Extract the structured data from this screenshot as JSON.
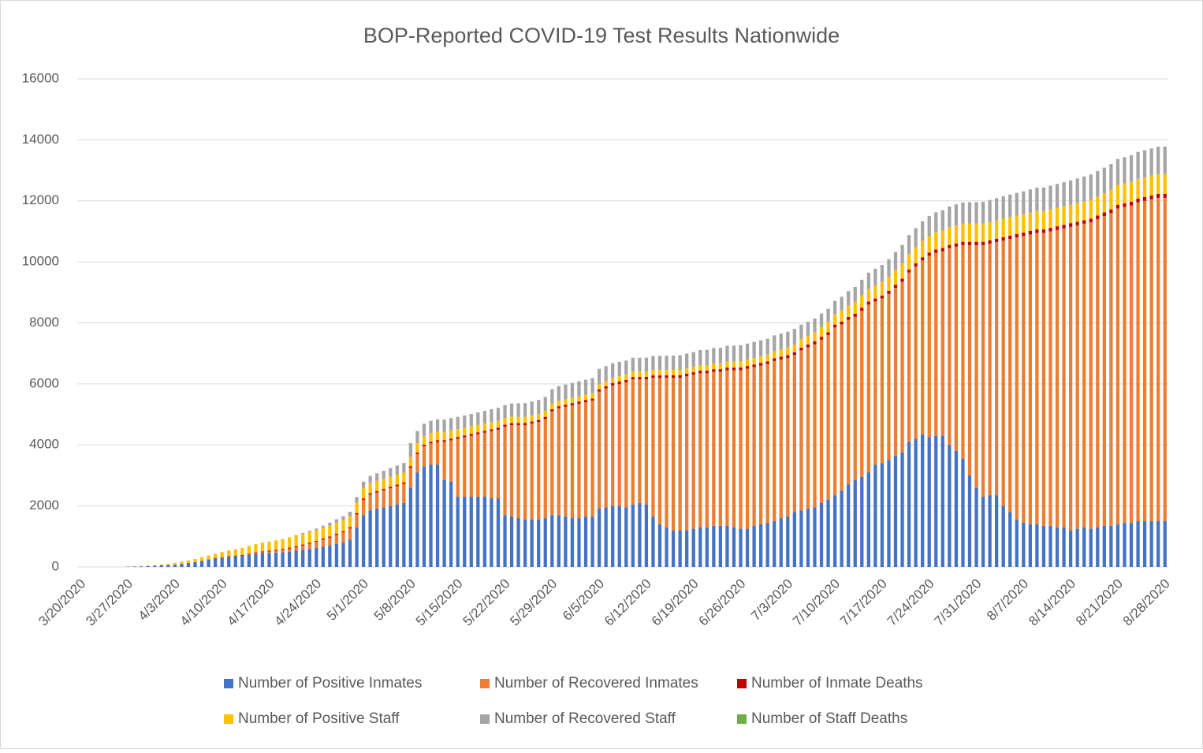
{
  "chart_data": {
    "type": "stacked-bar",
    "title": "BOP-Reported COVID-19 Test Results Nationwide",
    "categories": [
      "3/20/2020",
      null,
      null,
      null,
      null,
      null,
      null,
      "3/27/2020",
      null,
      null,
      null,
      null,
      null,
      null,
      "4/3/2020",
      null,
      null,
      null,
      null,
      null,
      null,
      "4/10/2020",
      null,
      null,
      null,
      null,
      null,
      null,
      "4/17/2020",
      null,
      null,
      null,
      null,
      null,
      null,
      "4/24/2020",
      null,
      null,
      null,
      null,
      null,
      null,
      "5/1/2020",
      null,
      null,
      null,
      null,
      null,
      null,
      "5/8/2020",
      null,
      null,
      null,
      null,
      null,
      null,
      "5/15/2020",
      null,
      null,
      null,
      null,
      null,
      null,
      "5/22/2020",
      null,
      null,
      null,
      null,
      null,
      null,
      "5/29/2020",
      null,
      null,
      null,
      null,
      null,
      null,
      "6/5/2020",
      null,
      null,
      null,
      null,
      null,
      null,
      "6/12/2020",
      null,
      null,
      null,
      null,
      null,
      null,
      "6/19/2020",
      null,
      null,
      null,
      null,
      null,
      null,
      "6/26/2020",
      null,
      null,
      null,
      null,
      null,
      null,
      "7/3/2020",
      null,
      null,
      null,
      null,
      null,
      null,
      "7/10/2020",
      null,
      null,
      null,
      null,
      null,
      null,
      "7/17/2020",
      null,
      null,
      null,
      null,
      null,
      null,
      "7/24/2020",
      null,
      null,
      null,
      null,
      null,
      null,
      "7/31/2020",
      null,
      null,
      null,
      null,
      null,
      null,
      "8/7/2020",
      null,
      null,
      null,
      null,
      null,
      null,
      "8/14/2020",
      null,
      null,
      null,
      null,
      null,
      null,
      "8/21/2020",
      null,
      null,
      null,
      null,
      null,
      null,
      "8/28/2020"
    ],
    "series": [
      {
        "name": "Number of Positive Inmates",
        "color": "#4472c4",
        "values": [
          0,
          0,
          0,
          0,
          0,
          0,
          0,
          10,
          14,
          19,
          28,
          35,
          50,
          60,
          75,
          95,
          120,
          150,
          190,
          230,
          270,
          300,
          330,
          350,
          370,
          400,
          430,
          450,
          460,
          470,
          480,
          500,
          530,
          560,
          590,
          620,
          660,
          700,
          750,
          800,
          900,
          1300,
          1700,
          1850,
          1900,
          1950,
          2000,
          2050,
          2100,
          2600,
          3100,
          3300,
          3350,
          3350,
          2850,
          2800,
          2300,
          2300,
          2300,
          2300,
          2300,
          2250,
          2250,
          1700,
          1650,
          1600,
          1550,
          1550,
          1550,
          1600,
          1700,
          1700,
          1650,
          1600,
          1600,
          1650,
          1650,
          1900,
          1950,
          2000,
          2000,
          1950,
          2050,
          2100,
          2050,
          1650,
          1400,
          1300,
          1200,
          1200,
          1200,
          1250,
          1300,
          1300,
          1350,
          1350,
          1350,
          1300,
          1250,
          1250,
          1350,
          1400,
          1450,
          1500,
          1600,
          1650,
          1800,
          1850,
          1900,
          1950,
          2100,
          2200,
          2350,
          2500,
          2700,
          2850,
          2950,
          3100,
          3350,
          3400,
          3500,
          3650,
          3750,
          4100,
          4200,
          4350,
          4250,
          4300,
          4300,
          4000,
          3800,
          3550,
          3000,
          2600,
          2300,
          2350,
          2350,
          2000,
          1800,
          1550,
          1450,
          1400,
          1400,
          1350,
          1350,
          1300,
          1300,
          1200,
          1250,
          1300,
          1250,
          1300,
          1350,
          1350,
          1400,
          1450,
          1450,
          1500,
          1500,
          1500,
          1500,
          1500
        ]
      },
      {
        "name": "Number of Recovered Inmates",
        "color": "#ed7d31",
        "values": [
          0,
          0,
          0,
          0,
          0,
          0,
          0,
          0,
          0,
          0,
          0,
          0,
          0,
          0,
          0,
          0,
          0,
          0,
          0,
          0,
          0,
          0,
          0,
          0,
          0,
          10,
          20,
          30,
          40,
          60,
          80,
          100,
          120,
          140,
          170,
          200,
          230,
          260,
          300,
          330,
          360,
          420,
          500,
          520,
          540,
          560,
          580,
          600,
          620,
          650,
          600,
          650,
          700,
          750,
          1250,
          1350,
          1900,
          1950,
          2000,
          2050,
          2100,
          2200,
          2250,
          2900,
          3000,
          3050,
          3100,
          3150,
          3200,
          3250,
          3400,
          3500,
          3600,
          3700,
          3750,
          3750,
          3800,
          3850,
          3900,
          3950,
          4000,
          4100,
          4100,
          4050,
          4100,
          4550,
          4800,
          4900,
          5000,
          5000,
          5050,
          5050,
          5050,
          5050,
          5050,
          5050,
          5100,
          5150,
          5200,
          5250,
          5200,
          5200,
          5200,
          5250,
          5200,
          5200,
          5150,
          5250,
          5300,
          5350,
          5350,
          5400,
          5500,
          5450,
          5400,
          5350,
          5450,
          5500,
          5350,
          5400,
          5450,
          5500,
          5600,
          5550,
          5650,
          5700,
          5950,
          6000,
          6050,
          6450,
          6700,
          7000,
          7550,
          7950,
          8250,
          8250,
          8300,
          8700,
          8950,
          9250,
          9400,
          9500,
          9550,
          9600,
          9650,
          9750,
          9800,
          9950,
          9950,
          9950,
          10050,
          10100,
          10150,
          10250,
          10350,
          10350,
          10400,
          10450,
          10500,
          10550,
          10600,
          10600
        ]
      },
      {
        "name": "Number of Inmate Deaths",
        "color": "#c00000",
        "values": [
          0,
          0,
          0,
          0,
          0,
          0,
          0,
          0,
          0,
          0,
          0,
          1,
          2,
          3,
          5,
          7,
          8,
          9,
          10,
          12,
          14,
          16,
          18,
          20,
          22,
          24,
          26,
          28,
          29,
          30,
          31,
          32,
          33,
          34,
          35,
          36,
          38,
          39,
          40,
          41,
          41,
          42,
          44,
          45,
          46,
          47,
          48,
          49,
          50,
          51,
          52,
          53,
          54,
          55,
          56,
          57,
          58,
          59,
          60,
          61,
          62,
          63,
          63,
          64,
          64,
          65,
          66,
          67,
          67,
          68,
          68,
          69,
          69,
          70,
          71,
          72,
          72,
          73,
          73,
          74,
          75,
          76,
          76,
          77,
          78,
          78,
          79,
          80,
          80,
          81,
          82,
          82,
          83,
          83,
          84,
          84,
          85,
          85,
          86,
          86,
          87,
          88,
          88,
          89,
          89,
          90,
          90,
          91,
          92,
          92,
          93,
          93,
          94,
          95,
          95,
          96,
          97,
          97,
          98,
          98,
          99,
          100,
          100,
          100,
          101,
          102,
          103,
          104,
          104,
          105,
          105,
          106,
          106,
          107,
          108,
          108,
          109,
          110,
          110,
          111,
          112,
          112,
          113,
          113,
          114,
          114,
          115,
          116,
          116,
          117,
          118,
          119,
          120,
          120,
          121,
          122,
          123,
          124,
          125,
          126,
          127,
          128
        ]
      },
      {
        "name": "Number of Positive Staff",
        "color": "#ffc000",
        "values": [
          0,
          0,
          0,
          0,
          0,
          0,
          0,
          5,
          8,
          12,
          18,
          25,
          32,
          40,
          55,
          70,
          85,
          100,
          120,
          135,
          150,
          170,
          190,
          210,
          230,
          250,
          270,
          290,
          300,
          310,
          320,
          330,
          340,
          350,
          350,
          350,
          355,
          360,
          360,
          360,
          355,
          355,
          350,
          345,
          340,
          335,
          330,
          325,
          320,
          310,
          300,
          290,
          285,
          280,
          275,
          270,
          260,
          255,
          250,
          245,
          240,
          235,
          230,
          220,
          215,
          210,
          205,
          200,
          195,
          190,
          185,
          180,
          180,
          175,
          175,
          170,
          170,
          170,
          170,
          170,
          175,
          175,
          175,
          180,
          180,
          180,
          180,
          180,
          180,
          180,
          180,
          180,
          185,
          185,
          190,
          190,
          195,
          195,
          200,
          205,
          210,
          215,
          220,
          230,
          240,
          250,
          260,
          270,
          285,
          300,
          320,
          340,
          350,
          360,
          375,
          390,
          405,
          420,
          435,
          450,
          465,
          480,
          495,
          510,
          525,
          540,
          550,
          560,
          570,
          580,
          590,
          595,
          600,
          600,
          600,
          600,
          600,
          600,
          600,
          600,
          600,
          600,
          600,
          600,
          600,
          600,
          600,
          600,
          605,
          610,
          615,
          620,
          630,
          640,
          650,
          650,
          650,
          650,
          650,
          650,
          650,
          650
        ]
      },
      {
        "name": "Number of Recovered Staff",
        "color": "#a5a5a5",
        "values": [
          0,
          0,
          0,
          0,
          0,
          0,
          0,
          0,
          0,
          0,
          0,
          0,
          0,
          0,
          0,
          0,
          0,
          0,
          0,
          0,
          0,
          0,
          0,
          0,
          0,
          0,
          0,
          0,
          0,
          0,
          5,
          10,
          20,
          30,
          40,
          50,
          70,
          90,
          110,
          130,
          150,
          170,
          200,
          220,
          240,
          260,
          280,
          300,
          320,
          450,
          400,
          400,
          400,
          400,
          400,
          400,
          400,
          400,
          405,
          410,
          415,
          420,
          420,
          420,
          430,
          440,
          450,
          455,
          460,
          465,
          470,
          475,
          480,
          485,
          490,
          495,
          500,
          500,
          490,
          480,
          470,
          460,
          455,
          450,
          450,
          455,
          460,
          465,
          470,
          475,
          480,
          480,
          490,
          500,
          505,
          510,
          520,
          525,
          530,
          530,
          525,
          525,
          520,
          520,
          520,
          520,
          500,
          480,
          460,
          450,
          440,
          430,
          430,
          450,
          470,
          490,
          510,
          530,
          540,
          550,
          570,
          590,
          610,
          620,
          630,
          640,
          650,
          660,
          670,
          680,
          690,
          695,
          700,
          700,
          710,
          720,
          730,
          740,
          745,
          750,
          750,
          760,
          770,
          775,
          780,
          790,
          795,
          800,
          810,
          820,
          830,
          835,
          840,
          845,
          850,
          860,
          870,
          880,
          885,
          890,
          895,
          900
        ]
      },
      {
        "name": "Number of Staff Deaths",
        "color": "#70ad47",
        "values": [
          0,
          0,
          0,
          0,
          0,
          0,
          0,
          0,
          0,
          0,
          0,
          0,
          0,
          0,
          0,
          0,
          0,
          0,
          0,
          0,
          0,
          0,
          0,
          0,
          0,
          0,
          0,
          0,
          1,
          1,
          1,
          1,
          1,
          1,
          1,
          1,
          1,
          1,
          1,
          1,
          1,
          1,
          1,
          1,
          1,
          1,
          1,
          1,
          1,
          1,
          1,
          1,
          1,
          1,
          1,
          1,
          1,
          1,
          1,
          1,
          1,
          1,
          1,
          1,
          1,
          1,
          1,
          1,
          1,
          1,
          1,
          1,
          1,
          1,
          1,
          1,
          1,
          1,
          1,
          1,
          1,
          1,
          1,
          1,
          1,
          1,
          1,
          1,
          1,
          1,
          1,
          1,
          1,
          1,
          1,
          1,
          1,
          1,
          1,
          1,
          1,
          1,
          1,
          1,
          1,
          1,
          1,
          1,
          1,
          1,
          1,
          1,
          1,
          1,
          1,
          1,
          1,
          1,
          1,
          1,
          1,
          1,
          1,
          1,
          1,
          1,
          1,
          1,
          1,
          1,
          1,
          1,
          1,
          1,
          1,
          1,
          1,
          1,
          1,
          1,
          2,
          2,
          2,
          2,
          2,
          2,
          2,
          2,
          2,
          2,
          2,
          2,
          2,
          2,
          2,
          2,
          2,
          2,
          2,
          2,
          2,
          2
        ]
      }
    ],
    "ylim": [
      0,
      16000
    ],
    "yticks": [
      0,
      2000,
      4000,
      6000,
      8000,
      10000,
      12000,
      14000,
      16000
    ],
    "grid": true,
    "legend": "bottom"
  }
}
